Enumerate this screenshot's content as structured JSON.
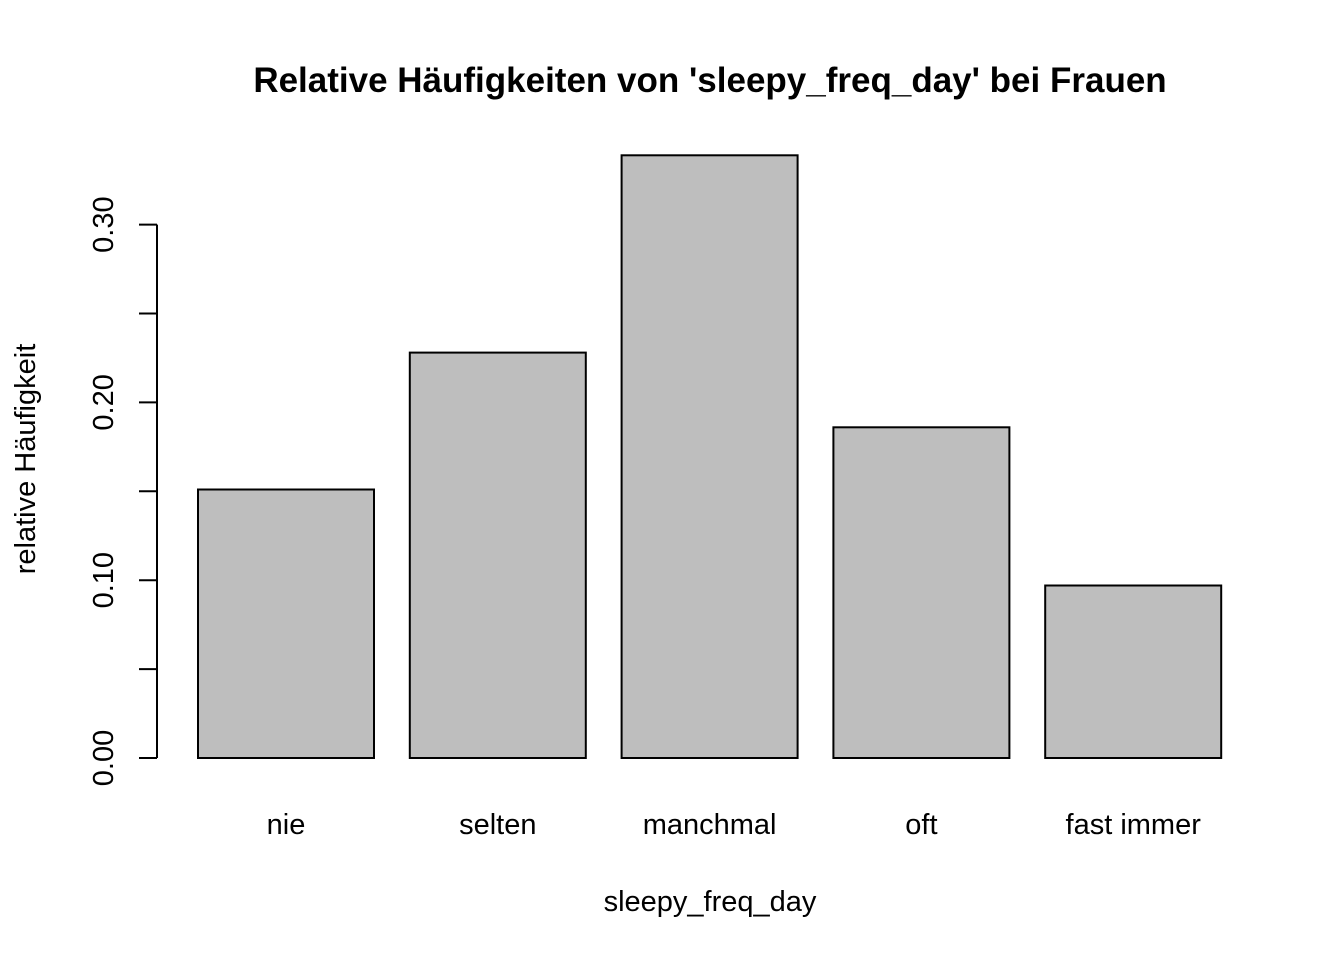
{
  "chart_data": {
    "type": "bar",
    "title": "Relative Häufigkeiten von 'sleepy_freq_day' bei Frauen",
    "xlabel": "sleepy_freq_day",
    "ylabel": "relative Häufigkeit",
    "categories": [
      "nie",
      "selten",
      "manchmal",
      "oft",
      "fast immer"
    ],
    "values": [
      0.151,
      0.228,
      0.339,
      0.186,
      0.097
    ],
    "ylim": [
      0,
      0.35
    ],
    "y_ticks": [
      0.0,
      0.05,
      0.1,
      0.15,
      0.2,
      0.25,
      0.3
    ],
    "y_tick_labels": [
      "0.00",
      "",
      "0.10",
      "",
      "0.20",
      "",
      "0.30"
    ],
    "bar_color": "#bebebe",
    "border_color": "#000000",
    "grid": false,
    "legend": "none"
  }
}
